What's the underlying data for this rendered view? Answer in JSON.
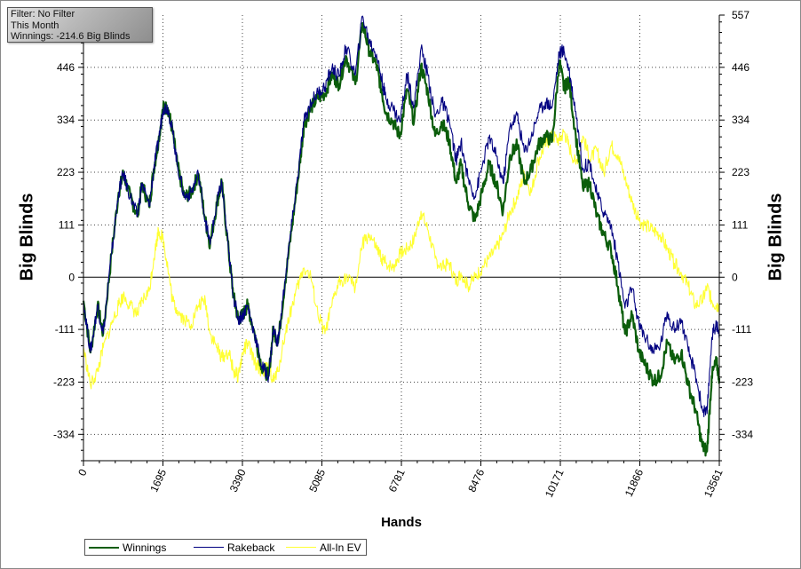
{
  "info": {
    "filter": "Filter: No Filter",
    "period": "This Month",
    "winnings": "Winnings: -214.6 Big Blinds"
  },
  "colors": {
    "winnings": "#0b5d0b",
    "rakeback": "#000080",
    "allin_ev": "#ffff33"
  },
  "chart_data": {
    "type": "line",
    "xlabel": "Hands",
    "ylabel": "Big Blinds",
    "xlim": [
      0,
      13561
    ],
    "ylim": [
      -390,
      557
    ],
    "x_ticks": [
      "0",
      "1695",
      "3390",
      "5085",
      "6781",
      "8476",
      "10171",
      "11866",
      "13561"
    ],
    "y_ticks": [
      "557",
      "446",
      "334",
      "223",
      "111",
      "0",
      "-111",
      "-223",
      "-334"
    ],
    "grid": true,
    "legend_position": "bottom-left",
    "x": [
      0,
      150,
      300,
      420,
      600,
      750,
      850,
      1000,
      1150,
      1250,
      1400,
      1500,
      1600,
      1700,
      1800,
      1900,
      2000,
      2150,
      2300,
      2450,
      2600,
      2700,
      2850,
      2950,
      3100,
      3200,
      3300,
      3400,
      3500,
      3650,
      3800,
      3950,
      4050,
      4150,
      4300,
      4450,
      4600,
      4700,
      4850,
      5000,
      5150,
      5300,
      5450,
      5600,
      5800,
      5950,
      6100,
      6250,
      6350,
      6450,
      6600,
      6750,
      6900,
      7050,
      7200,
      7350,
      7500,
      7650,
      7800,
      7950,
      8050,
      8200,
      8350,
      8500,
      8650,
      8800,
      8950,
      9100,
      9250,
      9400,
      9550,
      9700,
      9850,
      10000,
      10150,
      10250,
      10350,
      10500,
      10650,
      10800,
      10950,
      11100,
      11250,
      11400,
      11550,
      11700,
      11850,
      12000,
      12150,
      12300,
      12450,
      12600,
      12750,
      12900,
      13050,
      13200,
      13300,
      13400,
      13500,
      13561
    ],
    "series": [
      {
        "name": "Winnings",
        "values": [
          -50,
          -160,
          -60,
          -120,
          50,
          180,
          220,
          170,
          130,
          200,
          150,
          230,
          290,
          360,
          360,
          310,
          240,
          170,
          180,
          220,
          120,
          70,
          160,
          200,
          50,
          -40,
          -90,
          -80,
          -60,
          -120,
          -190,
          -210,
          -110,
          -140,
          -10,
          110,
          230,
          320,
          360,
          380,
          390,
          430,
          410,
          470,
          410,
          540,
          480,
          450,
          400,
          350,
          330,
          300,
          400,
          330,
          450,
          390,
          300,
          330,
          290,
          200,
          240,
          160,
          120,
          180,
          240,
          200,
          140,
          260,
          280,
          200,
          230,
          280,
          300,
          290,
          460,
          400,
          420,
          300,
          190,
          200,
          130,
          90,
          60,
          -20,
          -120,
          -80,
          -160,
          -190,
          -220,
          -210,
          -140,
          -180,
          -160,
          -230,
          -280,
          -360,
          -370,
          -210,
          -180,
          -214.6
        ]
      },
      {
        "name": "Rakeback",
        "values": [
          -50,
          -160,
          -60,
          -120,
          50,
          180,
          220,
          170,
          130,
          200,
          150,
          230,
          290,
          360,
          360,
          310,
          240,
          170,
          180,
          220,
          120,
          70,
          160,
          200,
          50,
          -40,
          -90,
          -80,
          -60,
          -120,
          -190,
          -210,
          -110,
          -140,
          -5,
          118,
          240,
          330,
          372,
          392,
          404,
          445,
          426,
          490,
          430,
          555,
          500,
          474,
          426,
          378,
          360,
          330,
          432,
          364,
          486,
          428,
          340,
          372,
          334,
          246,
          288,
          210,
          172,
          234,
          296,
          258,
          200,
          322,
          344,
          266,
          298,
          350,
          372,
          364,
          478,
          480,
          444,
          352,
          232,
          244,
          176,
          138,
          110,
          32,
          -66,
          -24,
          -102,
          -130,
          -158,
          -146,
          -74,
          -112,
          -90,
          -158,
          -204,
          -282,
          -290,
          -128,
          -96,
          -130
        ]
      },
      {
        "name": "All-In EV",
        "values": [
          -150,
          -230,
          -200,
          -150,
          -100,
          -60,
          -40,
          -60,
          -80,
          -50,
          -30,
          40,
          100,
          80,
          20,
          -50,
          -70,
          -90,
          -100,
          -60,
          -50,
          -120,
          -150,
          -170,
          -160,
          -200,
          -210,
          -160,
          -140,
          -180,
          -200,
          -190,
          -220,
          -200,
          -120,
          -60,
          -10,
          20,
          0,
          -80,
          -120,
          -60,
          -10,
          0,
          -20,
          70,
          90,
          60,
          40,
          30,
          20,
          50,
          60,
          80,
          140,
          100,
          40,
          20,
          30,
          -10,
          10,
          -20,
          0,
          20,
          40,
          60,
          90,
          140,
          170,
          220,
          180,
          250,
          280,
          300,
          290,
          310,
          280,
          240,
          300,
          250,
          270,
          220,
          280,
          260,
          210,
          160,
          120,
          110,
          100,
          90,
          60,
          30,
          10,
          -20,
          -60,
          -50,
          -20,
          -50,
          -60,
          -60
        ]
      }
    ]
  }
}
